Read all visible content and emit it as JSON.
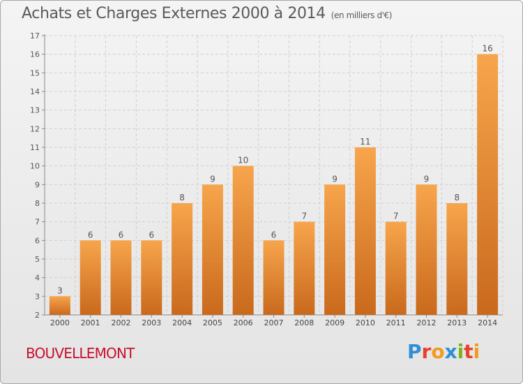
{
  "header": {
    "title": "Achats et Charges Externes 2000 à 2014",
    "unit": "(en milliers d'€)"
  },
  "footer": {
    "commune": "BOUVELLEMONT",
    "logo": "Proxiti"
  },
  "colors": {
    "bar_light": "#f7a54c",
    "bar_dark": "#c9691c",
    "logo_letters": [
      "#2f8fd6",
      "#e8412a",
      "#f29b1f",
      "#2f8fd6",
      "#7ab51d",
      "#e8412a",
      "#f29b1f"
    ]
  },
  "chart_data": {
    "type": "bar",
    "title": "Achats et Charges Externes 2000 à 2014",
    "subtitle": "(en milliers d'€)",
    "categories": [
      "2000",
      "2001",
      "2002",
      "2003",
      "2004",
      "2005",
      "2006",
      "2007",
      "2008",
      "2009",
      "2010",
      "2011",
      "2012",
      "2013",
      "2014"
    ],
    "values": [
      3,
      6,
      6,
      6,
      8,
      9,
      10,
      6,
      7,
      9,
      11,
      7,
      9,
      8,
      16
    ],
    "ylim": [
      2,
      17
    ],
    "yticks": [
      2,
      3,
      4,
      5,
      6,
      7,
      8,
      9,
      10,
      11,
      12,
      13,
      14,
      15,
      16,
      17
    ],
    "grid": true,
    "legend": "none"
  }
}
